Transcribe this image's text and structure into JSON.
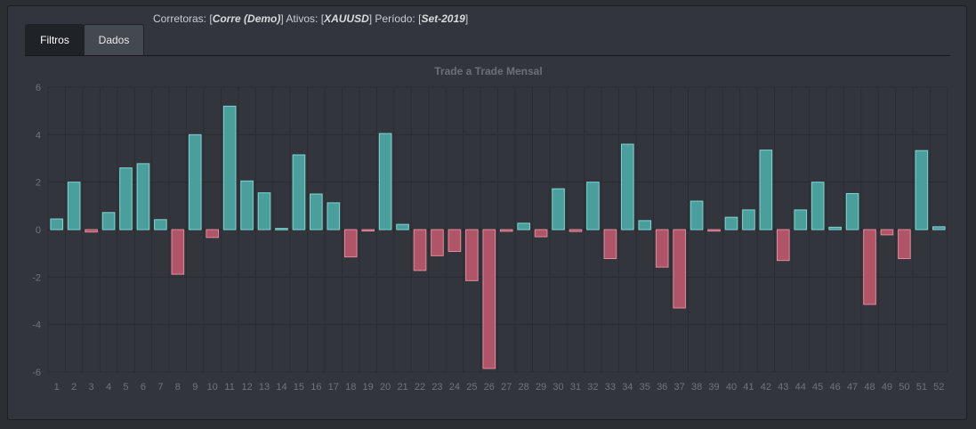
{
  "info": {
    "brokers_label": "Corretoras: [",
    "brokers_value": "Corre (Demo)",
    "assets_label": "] Ativos: [",
    "assets_value": "XAUUSD",
    "period_label": "] Período: [",
    "period_value": "Set-2019",
    "close": "]"
  },
  "tabs": [
    {
      "label": "Filtros",
      "active": true
    },
    {
      "label": "Dados",
      "active": false
    }
  ],
  "colors": {
    "positive_fill": "#4a9e9b",
    "positive_stroke": "#7fd6d2",
    "negative_fill": "#b05467",
    "negative_stroke": "#e4899b"
  },
  "chart_data": {
    "type": "bar",
    "title": "Trade a Trade Mensal",
    "xlabel": "",
    "ylabel": "",
    "ylim": [
      -6,
      6
    ],
    "yticks": [
      6,
      4,
      2,
      0,
      -2,
      -4,
      -6
    ],
    "grid": true,
    "categories": [
      "1",
      "2",
      "3",
      "4",
      "5",
      "6",
      "7",
      "8",
      "9",
      "10",
      "11",
      "12",
      "13",
      "14",
      "15",
      "16",
      "17",
      "18",
      "19",
      "20",
      "21",
      "22",
      "23",
      "24",
      "25",
      "26",
      "27",
      "28",
      "29",
      "30",
      "31",
      "32",
      "33",
      "34",
      "35",
      "36",
      "37",
      "38",
      "39",
      "40",
      "41",
      "42",
      "43",
      "44",
      "45",
      "46",
      "47",
      "48",
      "49",
      "50",
      "51",
      "52"
    ],
    "values": [
      0.45,
      2.0,
      -0.1,
      0.72,
      2.6,
      2.78,
      0.42,
      -1.88,
      4.0,
      -0.33,
      5.2,
      2.05,
      1.55,
      0.05,
      3.15,
      1.5,
      1.13,
      -1.15,
      -0.03,
      4.05,
      0.22,
      -1.72,
      -1.1,
      -0.92,
      -2.15,
      -5.85,
      -0.07,
      0.27,
      -0.3,
      1.72,
      -0.08,
      2.0,
      -1.22,
      3.6,
      0.38,
      -1.58,
      -3.3,
      1.2,
      -0.06,
      0.52,
      0.83,
      3.35,
      -1.3,
      0.83,
      2.0,
      0.1,
      1.52,
      -3.15,
      -0.22,
      -1.22,
      3.33,
      0.12
    ]
  }
}
